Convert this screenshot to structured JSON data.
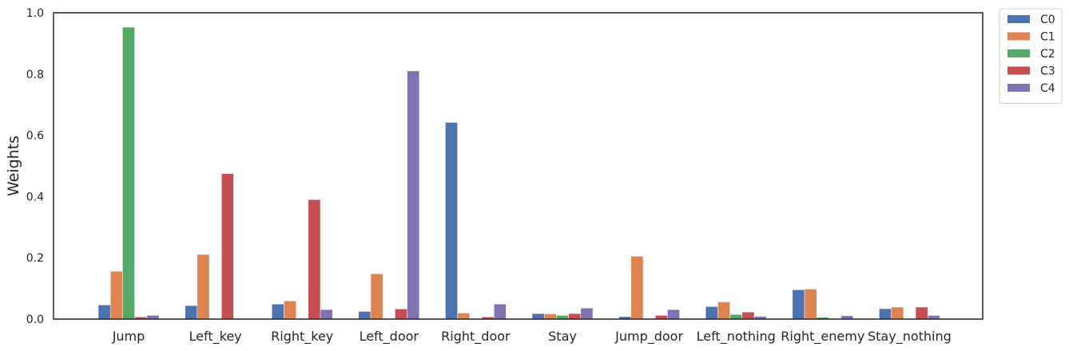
{
  "chart_data": {
    "type": "bar",
    "categories": [
      "Jump",
      "Left_key",
      "Right_key",
      "Left_door",
      "Right_door",
      "Stay",
      "Jump_door",
      "Left_nothing",
      "Right_enemy",
      "Stay_nothing"
    ],
    "series": [
      {
        "name": "C0",
        "color": "#4c72b0",
        "values": [
          0.046,
          0.044,
          0.049,
          0.025,
          0.642,
          0.018,
          0.008,
          0.041,
          0.096,
          0.034
        ]
      },
      {
        "name": "C1",
        "color": "#dd8452",
        "values": [
          0.156,
          0.211,
          0.059,
          0.148,
          0.02,
          0.017,
          0.205,
          0.056,
          0.098,
          0.039
        ]
      },
      {
        "name": "C2",
        "color": "#55a868",
        "values": [
          0.953,
          0.001,
          0.001,
          0.001,
          0.001,
          0.012,
          0.001,
          0.015,
          0.006,
          0.001
        ]
      },
      {
        "name": "C3",
        "color": "#c44e52",
        "values": [
          0.007,
          0.475,
          0.39,
          0.033,
          0.007,
          0.018,
          0.012,
          0.023,
          0.002,
          0.039
        ]
      },
      {
        "name": "C4",
        "color": "#8172b3",
        "values": [
          0.012,
          0.001,
          0.031,
          0.81,
          0.049,
          0.036,
          0.031,
          0.009,
          0.011,
          0.012
        ]
      }
    ],
    "title": "",
    "xlabel": "",
    "ylabel": "Weights",
    "ylim": [
      0,
      1.0
    ],
    "yticks": [
      "0.0",
      "0.2",
      "0.4",
      "0.6",
      "0.8",
      "1.0"
    ],
    "grid": false,
    "legend_position": "outside-top-right"
  }
}
